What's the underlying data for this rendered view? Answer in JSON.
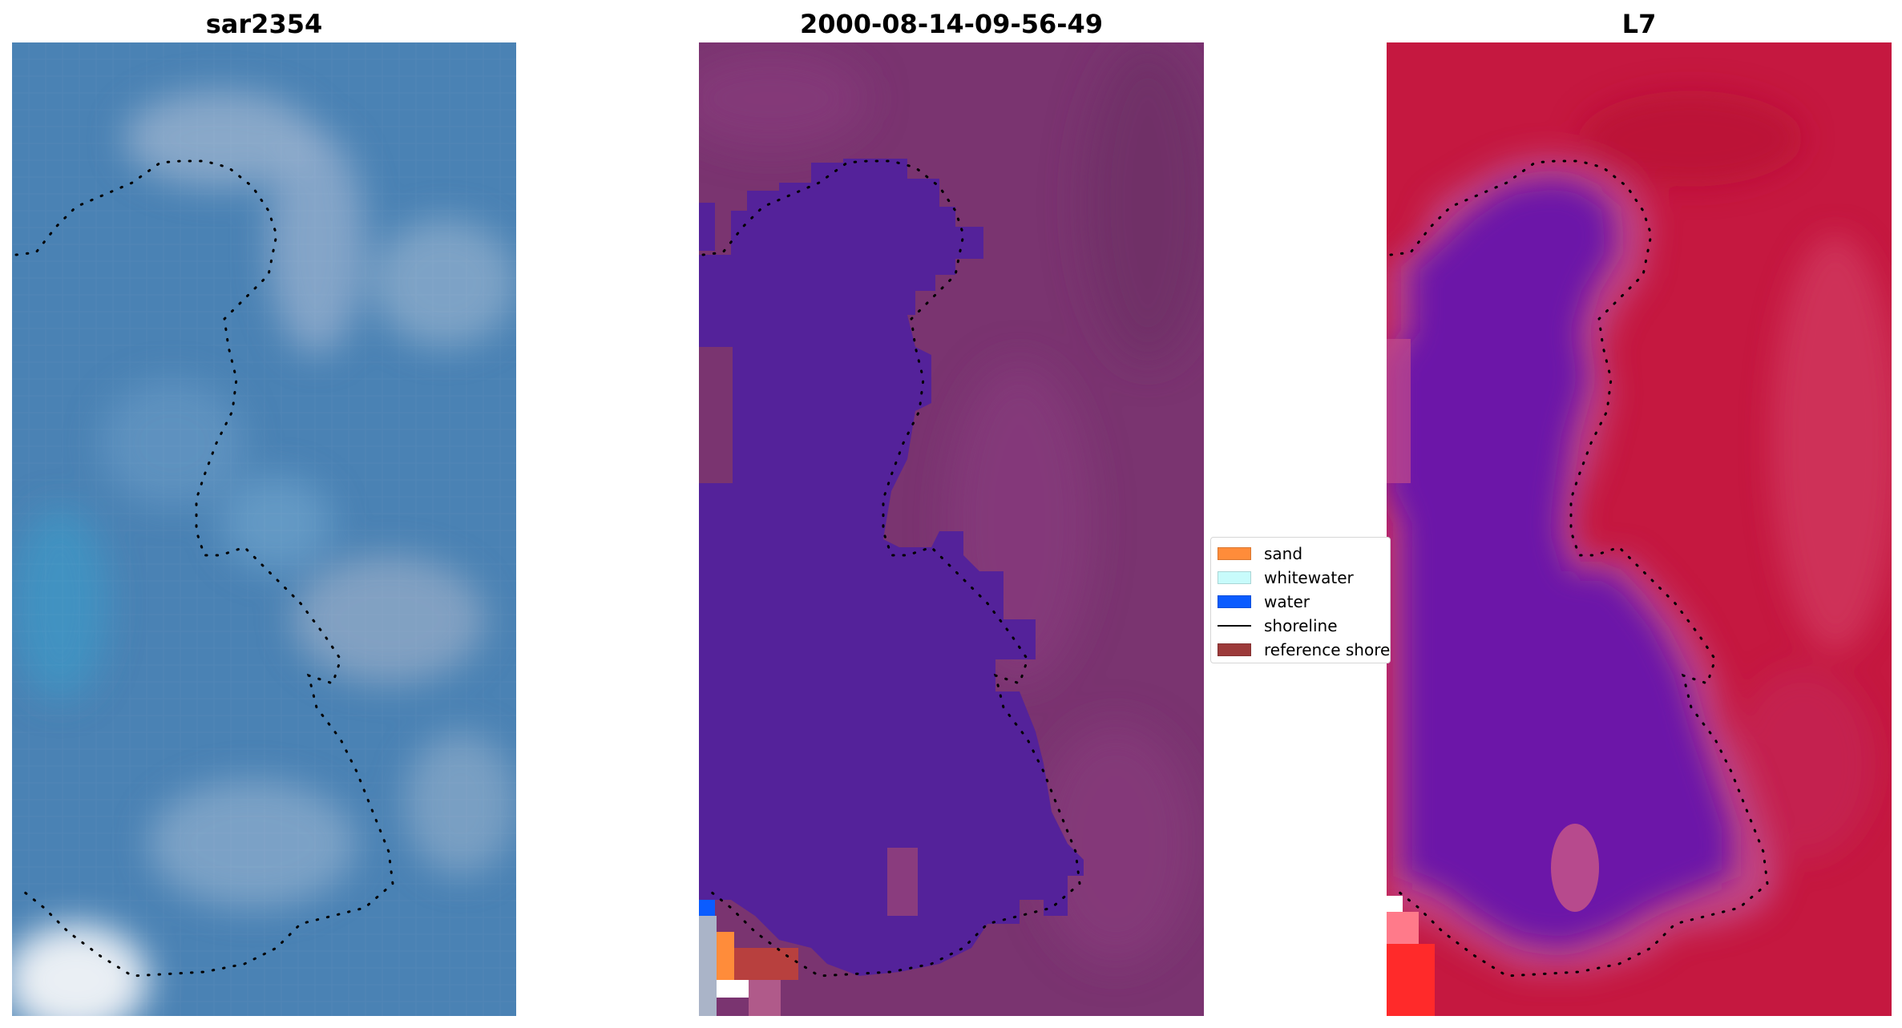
{
  "panels": [
    {
      "title": "sar2354"
    },
    {
      "title": "2000-08-14-09-56-49"
    },
    {
      "title": "L7"
    }
  ],
  "legend": {
    "items": [
      {
        "label": "sand",
        "color": "#ff8c3a",
        "kind": "patch"
      },
      {
        "label": "whitewater",
        "color": "#c8fbfb",
        "kind": "patch"
      },
      {
        "label": "water",
        "color": "#0a5cff",
        "kind": "patch"
      },
      {
        "label": "shoreline",
        "color": "#000000",
        "kind": "line"
      },
      {
        "label": "reference shoreline",
        "color": "#9c3a3a",
        "kind": "patch"
      }
    ]
  },
  "colors": {
    "rgb_background": "#4a82b4",
    "classified_background": "#7a3470",
    "classified_water_body": "#54229a",
    "index_background": "#c51840",
    "index_water_body": "#7418ac"
  }
}
